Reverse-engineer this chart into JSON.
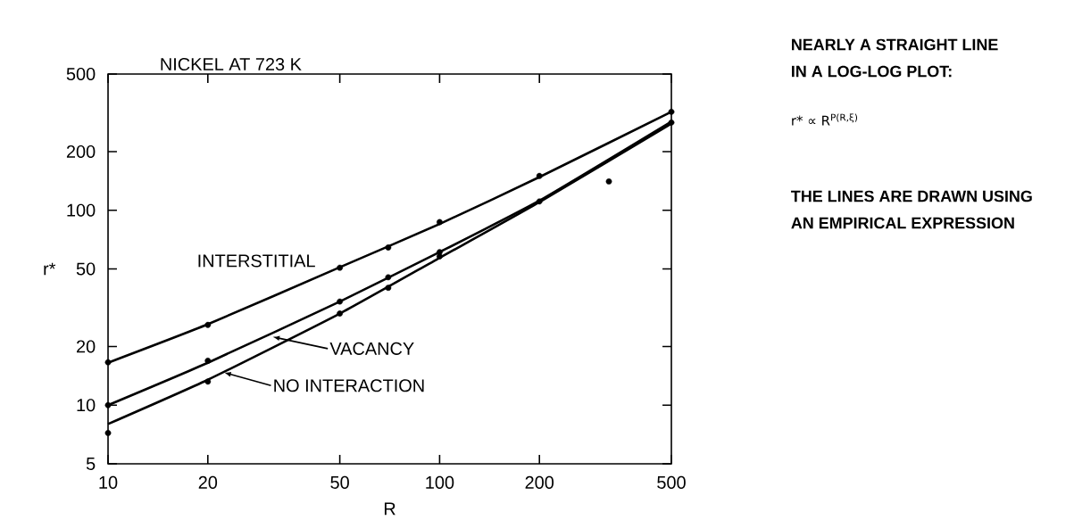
{
  "chart_data": {
    "type": "line",
    "xlabel": "R",
    "ylabel": "r*",
    "log": "xy",
    "grid": false,
    "legend": "bottom",
    "xlim": [
      10,
      500
    ],
    "ylim": [
      5,
      500
    ],
    "xticks": [
      10,
      20,
      50,
      100,
      200,
      500
    ],
    "yticks": [
      5,
      10,
      20,
      50,
      100,
      200,
      500
    ],
    "annotations": [
      "NICKEL AT 723 K",
      "NEARLY A STRAIGHT LINE",
      "IN A LOG-LOG PLOT:",
      "r* ∝ R$^{P(R,ξ)}$",
      "THE LINES ARE DRAWN USING",
      "AN EMPIRICAL EXPRESSION"
    ],
    "series": [
      {
        "name": "INTERSTITIAL",
        "type": "line",
        "marker": "none",
        "line_style": "solid",
        "color": "#000000",
        "x": [
          10,
          20,
          50,
          100,
          200,
          500
        ],
        "values": [
          16.5,
          26,
          51,
          85,
          148,
          320
        ]
      },
      {
        "name": "VACANCY",
        "marker": "none",
        "line_style": "solid",
        "color": "#000000",
        "x": [
          10,
          20,
          50,
          100,
          200,
          500
        ],
        "values": [
          10,
          16.5,
          34,
          61,
          112,
          285
        ]
      },
      {
        "name": "NO INTERACTION",
        "marker": "none",
        "line_style": "solid",
        "color": "#000000",
        "x": [
          10,
          20,
          50,
          100,
          200,
          500
        ],
        "values": [
          8,
          13.5,
          29.5,
          57,
          110,
          278
        ]
      },
      {
        "type": "scatter",
        "marker": "circle",
        "color": "#000000",
        "x": [
          10,
          20,
          50,
          70,
          100,
          200,
          500
        ],
        "values": [
          16.6,
          25.8,
          50.7,
          64.4,
          86.9,
          150,
          320
        ]
      },
      {
        "type": "scatter",
        "marker": "circle",
        "color": "#000000",
        "x": [
          10,
          20,
          50,
          70,
          100,
          200,
          500
        ],
        "values": [
          10,
          16.9,
          34,
          45.3,
          61,
          111,
          282
        ]
      },
      {
        "type": "scatter",
        "marker": "circle",
        "color": "#000000",
        "x": [
          10,
          20,
          50,
          70,
          100
        ],
        "values": [
          7.2,
          13.2,
          29.5,
          40,
          58
        ]
      },
      {
        "type": "scatter",
        "marker": "circle",
        "color": "#000000",
        "x": [
          324
        ],
        "values": [
          140.6
        ]
      }
    ]
  }
}
